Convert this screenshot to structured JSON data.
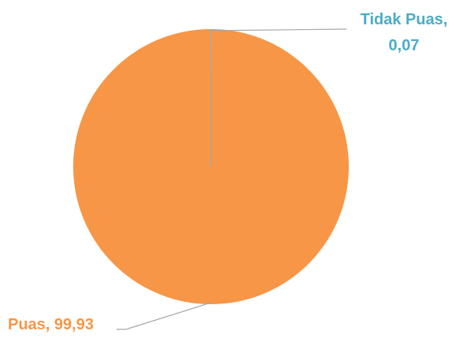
{
  "chart_data": {
    "type": "pie",
    "slices": [
      {
        "label": "Tidak Puas",
        "value": 0.07,
        "color": "#4BACC6",
        "label_color": "#4BACC6",
        "label_lines": [
          "Tidak Puas,",
          "0,07"
        ]
      },
      {
        "label": "Puas",
        "value": 99.93,
        "color": "#F79646",
        "label_color": "#F79646",
        "label_lines": [
          "Puas, 99,93"
        ]
      }
    ],
    "leader_line_color": "#A6A6A6",
    "legend": "none"
  }
}
